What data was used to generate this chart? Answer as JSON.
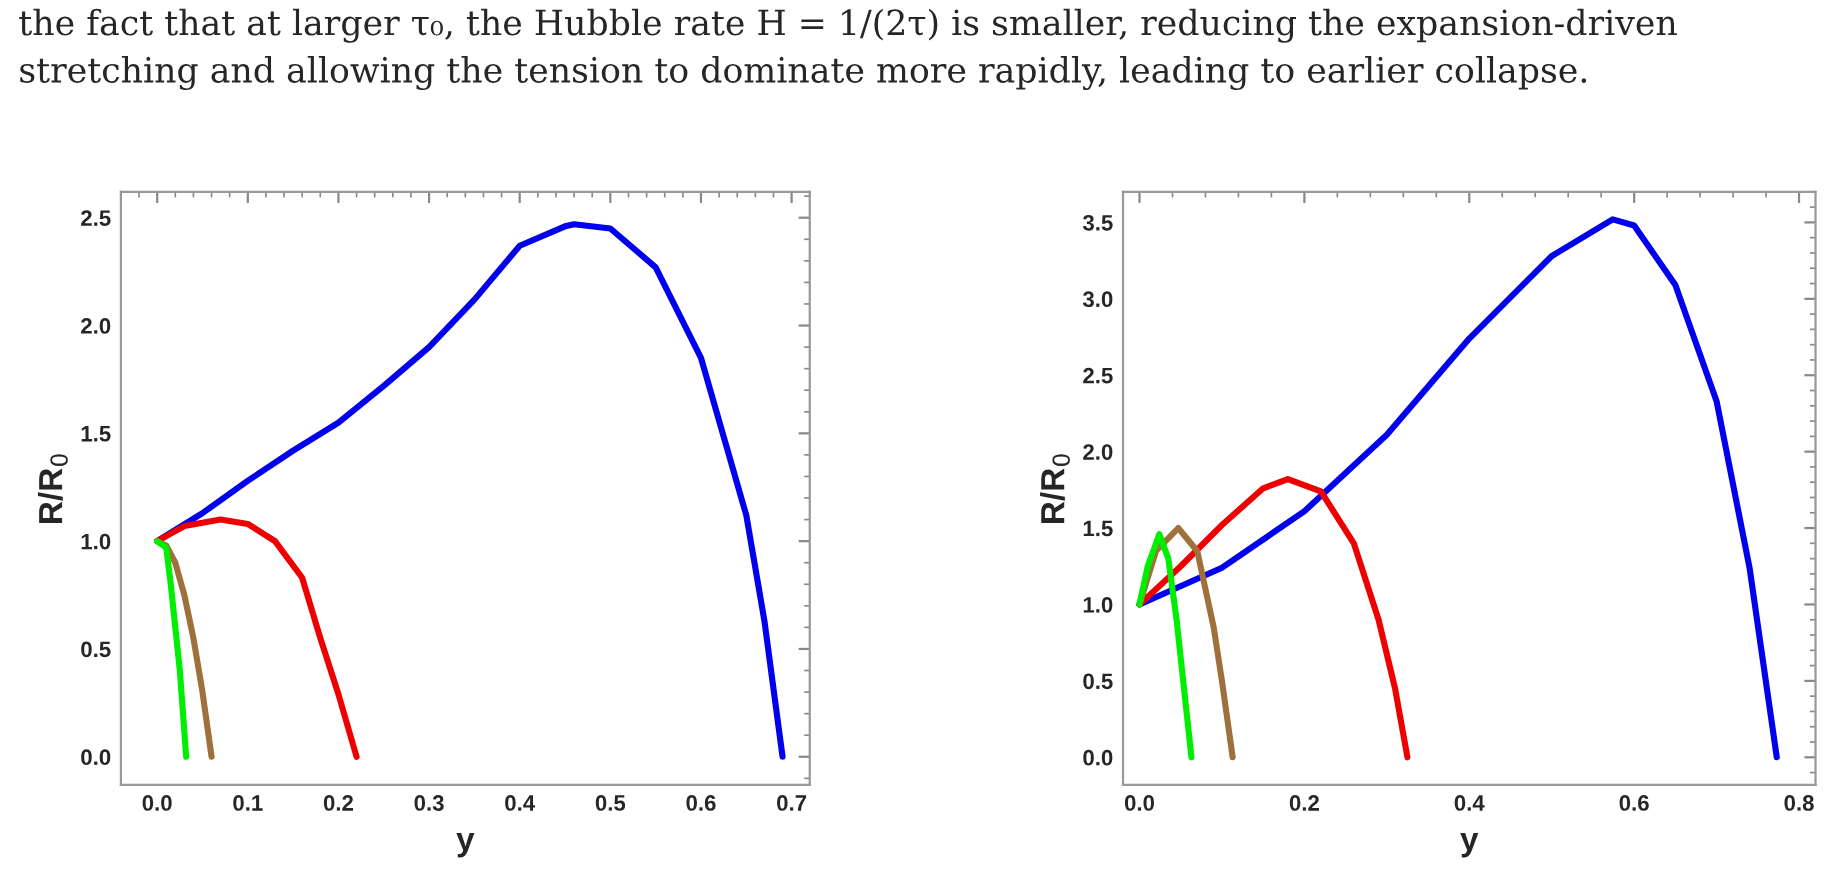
{
  "chart_data": [
    {
      "type": "line",
      "xlabel": "y",
      "ylabel": "R/R$_{0}$",
      "annotations": [
        "the fact that at larger τ₀, the Hubble rate H = 1/(2τ) is smaller, reducing the expansion-driven\nstretching and allowing the tension to dominate more rapidly, leading to earlier collapse."
      ],
      "xlim": [
        -0.04,
        0.72
      ],
      "ylim": [
        -0.13,
        2.62
      ],
      "xticks": [
        {
          "value": 0,
          "label": "0.0"
        },
        0.1,
        0.2,
        0.3,
        0.4,
        0.5,
        0.6,
        0.7
      ],
      "yticks": [
        {
          "value": 0,
          "label": "0.0"
        },
        0.5,
        {
          "value": 1,
          "label": "1.0"
        },
        1.5,
        {
          "value": 2,
          "label": "2.0"
        },
        2.5
      ],
      "grid": false,
      "legend": false,
      "series": [
        {
          "color": "#0000ee",
          "x": [
            0,
            0.05,
            0.1,
            0.15,
            0.2,
            0.25,
            0.3,
            0.35,
            0.4,
            0.45,
            0.46,
            0.5,
            0.55,
            0.6,
            0.65,
            0.67,
            0.69
          ],
          "values": [
            1,
            1.13,
            1.28,
            1.42,
            1.55,
            1.72,
            1.9,
            2.12,
            2.37,
            2.46,
            2.47,
            2.45,
            2.27,
            1.85,
            1.12,
            0.63,
            0
          ]
        },
        {
          "color": "#ee0000",
          "x": [
            0,
            0.03,
            0.07,
            0.1,
            0.13,
            0.16,
            0.18,
            0.2,
            0.22
          ],
          "values": [
            1,
            1.07,
            1.1,
            1.08,
            1.0,
            0.83,
            0.55,
            0.29,
            0
          ]
        },
        {
          "color": "#a0703c",
          "x": [
            0,
            0.01,
            0.02,
            0.03,
            0.04,
            0.05,
            0.06
          ],
          "values": [
            1,
            0.98,
            0.9,
            0.75,
            0.55,
            0.3,
            0
          ]
        },
        {
          "color": "#00ee00",
          "x": [
            0,
            0.01,
            0.015,
            0.02,
            0.025,
            0.032
          ],
          "values": [
            1,
            0.97,
            0.8,
            0.6,
            0.4,
            0
          ]
        }
      ]
    },
    {
      "type": "line",
      "xlabel": "y",
      "ylabel": "R/R$_{0}$",
      "xlim": [
        -0.02,
        0.82
      ],
      "ylim": [
        -0.18,
        3.7
      ],
      "xticks": [
        {
          "value": 0,
          "label": "0.0"
        },
        0.2,
        0.4,
        0.6,
        0.8
      ],
      "yticks": [
        {
          "value": 0,
          "label": "0.0"
        },
        0.5,
        {
          "value": 1,
          "label": "1.0"
        },
        1.5,
        {
          "value": 2,
          "label": "2.0"
        },
        2.5,
        {
          "value": 3,
          "label": "3.0"
        },
        3.5
      ],
      "grid": false,
      "legend": false,
      "series": [
        {
          "color": "#0000ee",
          "x": [
            0,
            0.1,
            0.2,
            0.3,
            0.4,
            0.5,
            0.574,
            0.6,
            0.65,
            0.7,
            0.74,
            0.773
          ],
          "values": [
            1,
            1.24,
            1.61,
            2.11,
            2.74,
            3.28,
            3.52,
            3.48,
            3.09,
            2.33,
            1.24,
            0
          ]
        },
        {
          "color": "#ee0000",
          "x": [
            0,
            0.05,
            0.1,
            0.15,
            0.18,
            0.22,
            0.26,
            0.29,
            0.31,
            0.325
          ],
          "values": [
            1,
            1.25,
            1.52,
            1.76,
            1.82,
            1.74,
            1.4,
            0.9,
            0.45,
            0
          ]
        },
        {
          "color": "#a0703c",
          "x": [
            0,
            0.02,
            0.047,
            0.07,
            0.09,
            0.1,
            0.113
          ],
          "values": [
            1,
            1.35,
            1.5,
            1.35,
            0.85,
            0.5,
            0
          ]
        },
        {
          "color": "#00ee00",
          "x": [
            0,
            0.01,
            0.024,
            0.035,
            0.045,
            0.055,
            0.063
          ],
          "values": [
            1,
            1.25,
            1.46,
            1.3,
            0.9,
            0.4,
            0
          ]
        }
      ]
    }
  ]
}
